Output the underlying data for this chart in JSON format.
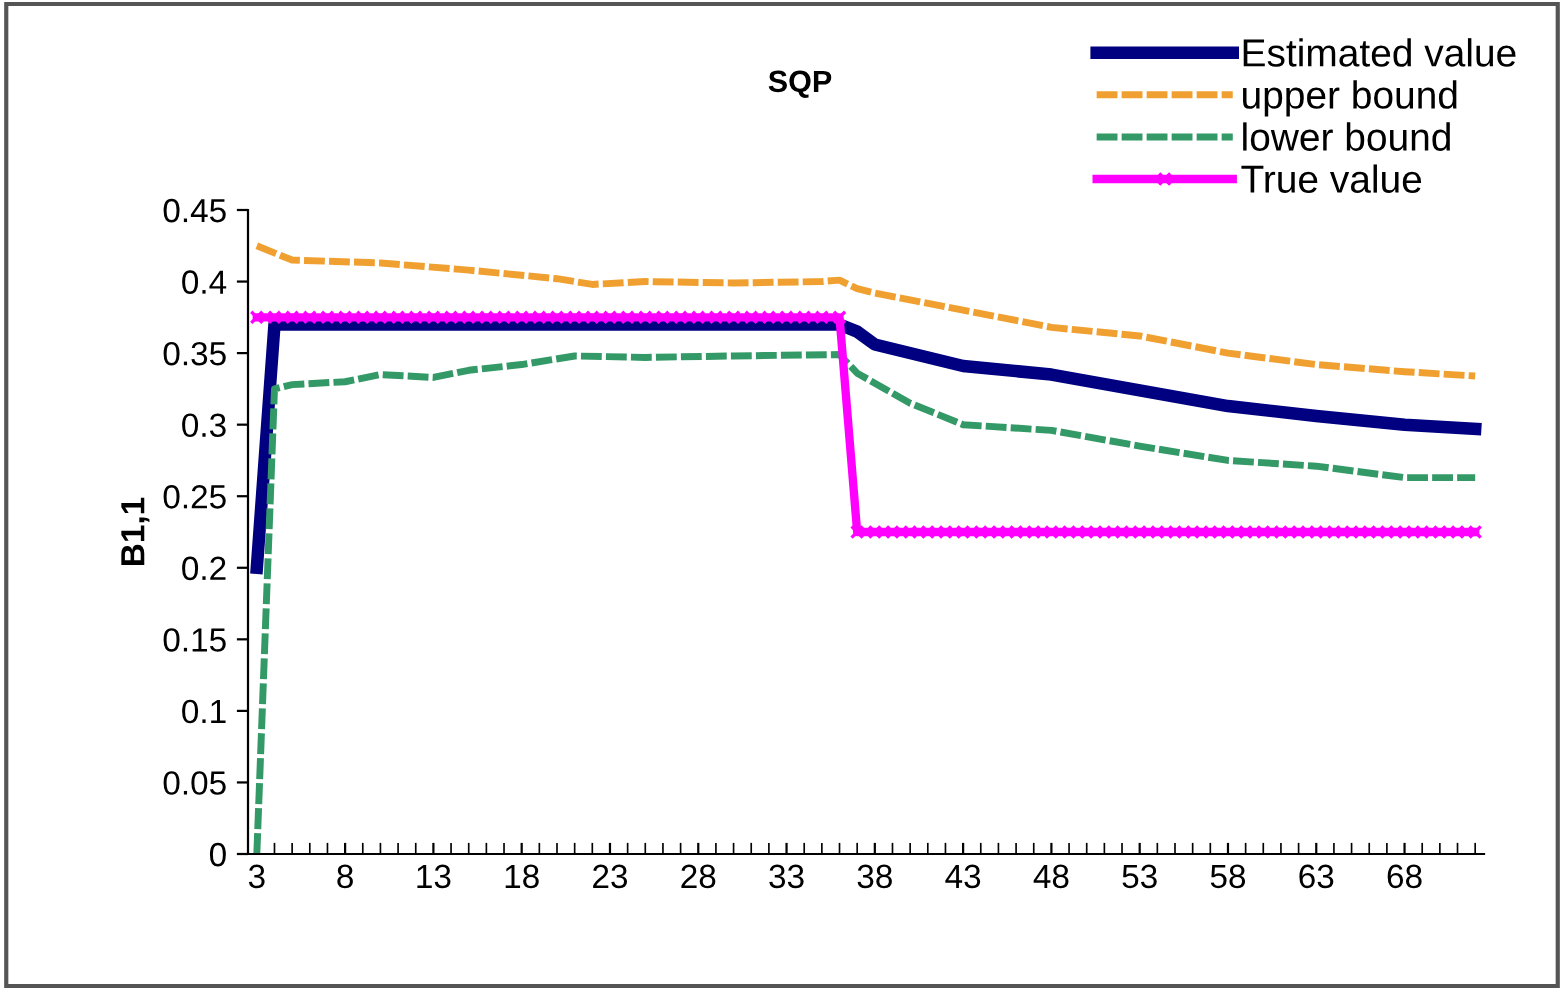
{
  "chart_data": {
    "type": "line",
    "title": "SQP",
    "ylabel": "B1,1",
    "xlim": [
      2.5,
      72.5
    ],
    "xticks": [
      3,
      8,
      13,
      18,
      23,
      28,
      33,
      38,
      43,
      48,
      53,
      58,
      63,
      68
    ],
    "ylim": [
      0,
      0.45
    ],
    "yticks": [
      0,
      0.05,
      0.1,
      0.15,
      0.2,
      0.25,
      0.3,
      0.35,
      0.4,
      0.45
    ],
    "grid": false,
    "legend": "top right",
    "series": [
      {
        "name": "Estimated value",
        "color": "#000080",
        "line_style": "solid",
        "marker": "none",
        "x": [
          3,
          4,
          10,
          20,
          30,
          36,
          37,
          38,
          43,
          48,
          53,
          58,
          63,
          68,
          72
        ],
        "values": [
          0.2,
          0.37,
          0.37,
          0.37,
          0.37,
          0.37,
          0.365,
          0.356,
          0.341,
          0.335,
          0.324,
          0.313,
          0.306,
          0.3,
          0.297
        ]
      },
      {
        "name": "upper bound",
        "color": "#f0a030",
        "line_style": "dashed",
        "marker": "none",
        "x": [
          3,
          5,
          10,
          15,
          20,
          22,
          25,
          30,
          35,
          36,
          37,
          38,
          43,
          48,
          53,
          58,
          63,
          68,
          72
        ],
        "values": [
          0.425,
          0.415,
          0.413,
          0.408,
          0.402,
          0.398,
          0.4,
          0.399,
          0.4,
          0.401,
          0.395,
          0.392,
          0.38,
          0.368,
          0.362,
          0.35,
          0.342,
          0.337,
          0.334
        ]
      },
      {
        "name": "lower bound",
        "color": "#339966",
        "line_style": "dashed",
        "marker": "none",
        "x": [
          3,
          4,
          5,
          8,
          10,
          13,
          15,
          18,
          21,
          25,
          30,
          36,
          37,
          40,
          43,
          48,
          53,
          58,
          63,
          68,
          72
        ],
        "values": [
          0,
          0.325,
          0.328,
          0.33,
          0.335,
          0.333,
          0.338,
          0.342,
          0.348,
          0.347,
          0.348,
          0.349,
          0.336,
          0.315,
          0.3,
          0.296,
          0.285,
          0.275,
          0.271,
          0.263,
          0.263
        ]
      },
      {
        "name": "True value",
        "color": "#ff00ff",
        "line_style": "solid",
        "marker": "cross",
        "x": [
          3,
          4,
          5,
          6,
          7,
          8,
          9,
          10,
          11,
          12,
          13,
          14,
          15,
          16,
          17,
          18,
          19,
          20,
          21,
          22,
          23,
          24,
          25,
          26,
          27,
          28,
          29,
          30,
          31,
          32,
          33,
          34,
          35,
          36,
          37,
          38,
          39,
          40,
          41,
          42,
          43,
          44,
          45,
          46,
          47,
          48,
          49,
          50,
          51,
          52,
          53,
          54,
          55,
          56,
          57,
          58,
          59,
          60,
          61,
          62,
          63,
          64,
          65,
          66,
          67,
          68,
          69,
          70,
          71,
          72
        ],
        "values": [
          0.375,
          0.375,
          0.375,
          0.375,
          0.375,
          0.375,
          0.375,
          0.375,
          0.375,
          0.375,
          0.375,
          0.375,
          0.375,
          0.375,
          0.375,
          0.375,
          0.375,
          0.375,
          0.375,
          0.375,
          0.375,
          0.375,
          0.375,
          0.375,
          0.375,
          0.375,
          0.375,
          0.375,
          0.375,
          0.375,
          0.375,
          0.375,
          0.375,
          0.375,
          0.225,
          0.225,
          0.225,
          0.225,
          0.225,
          0.225,
          0.225,
          0.225,
          0.225,
          0.225,
          0.225,
          0.225,
          0.225,
          0.225,
          0.225,
          0.225,
          0.225,
          0.225,
          0.225,
          0.225,
          0.225,
          0.225,
          0.225,
          0.225,
          0.225,
          0.225,
          0.225,
          0.225,
          0.225,
          0.225,
          0.225,
          0.225,
          0.225,
          0.225,
          0.225,
          0.225
        ]
      }
    ]
  }
}
